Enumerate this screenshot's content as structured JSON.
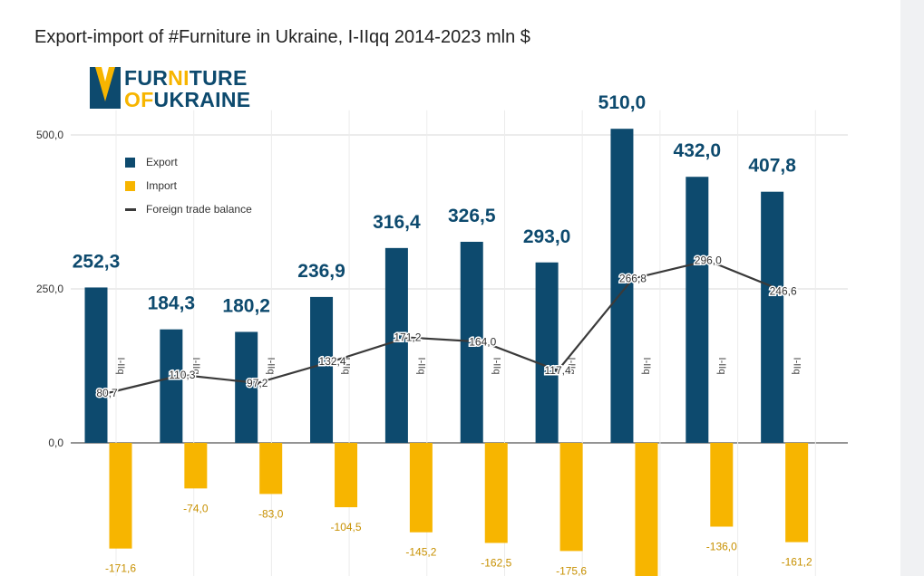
{
  "page": {
    "title": "Export-import of #Furniture in Ukraine, I-IIqq 2014-2023 mln $"
  },
  "logo": {
    "line1_a": "FUR",
    "line1_b": "NI",
    "line1_c": "TURE",
    "line2_a": "OF",
    "line2_b": "UKRAINE",
    "colors": {
      "navy": "#0d4a6e",
      "yellow": "#f7b500"
    }
  },
  "chart_data": {
    "type": "bar",
    "categories": [
      "I-IIq",
      "I-IIq",
      "I-IIq",
      "I-IIq",
      "I-IIq",
      "I-IIq",
      "I-IIq",
      "I-IIq",
      "I-IIq",
      "I-IIq"
    ],
    "series": [
      {
        "name": "Export",
        "type": "bar",
        "color": "#0d4a6e",
        "values": [
          252.3,
          184.3,
          180.2,
          236.9,
          316.4,
          326.5,
          293.0,
          510.0,
          432.0,
          407.8
        ],
        "labels": [
          "252,3",
          "184,3",
          "180,2",
          "236,9",
          "316,4",
          "326,5",
          "293,0",
          "510,0",
          "432,0",
          "407,8"
        ]
      },
      {
        "name": "Import",
        "type": "bar",
        "color": "#f7b500",
        "values": [
          -171.6,
          -74.0,
          -83.0,
          -104.5,
          -145.2,
          -162.5,
          -175.6,
          -243.2,
          -136.0,
          -161.2
        ],
        "labels": [
          "-171,6",
          "-74,0",
          "-83,0",
          "-104,5",
          "-145,2",
          "-162,5",
          "-175,6",
          "",
          "-136,0",
          "-161,2"
        ]
      },
      {
        "name": "Foreign trade balance",
        "type": "line",
        "color": "#3a3a3a",
        "values": [
          80.7,
          110.3,
          97.2,
          132.4,
          171.2,
          164.0,
          117.4,
          266.8,
          296.0,
          246.6
        ],
        "labels": [
          "80,7",
          "110,3",
          "97,2",
          "132,4",
          "171,2",
          "164,0",
          "117,4",
          "266,8",
          "296,0",
          "246,6"
        ]
      }
    ],
    "yaxis": {
      "ticks": [
        0,
        250,
        500
      ],
      "tick_labels": [
        "0,0",
        "250,0",
        "500,0"
      ]
    },
    "ylim": [
      -215,
      540
    ],
    "grid": true,
    "legend_position": "top-left"
  }
}
